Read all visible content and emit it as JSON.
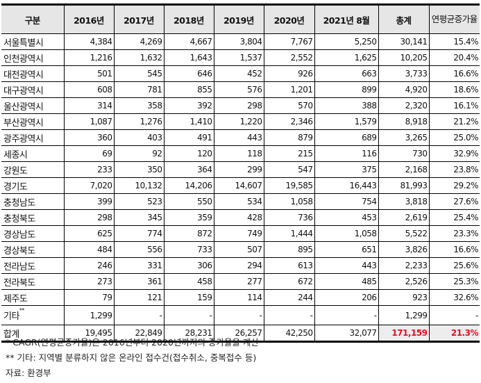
{
  "table": {
    "headers": [
      "구분",
      "2016년",
      "2017년",
      "2018년",
      "2019년",
      "2020년",
      "2021년 8월",
      "총계",
      "연평균증가율"
    ],
    "rows": [
      {
        "name": "서울특별시",
        "values": [
          "4,384",
          "4,269",
          "4,667",
          "3,804",
          "7,767",
          "5,250",
          "30,141",
          "15.4%"
        ]
      },
      {
        "name": "인천광역시",
        "values": [
          "1,216",
          "1,632",
          "1,643",
          "1,537",
          "2,552",
          "1,625",
          "10,205",
          "20.4%"
        ]
      },
      {
        "name": "대전광역시",
        "values": [
          "501",
          "545",
          "646",
          "452",
          "926",
          "663",
          "3,733",
          "16.6%"
        ]
      },
      {
        "name": "대구광역시",
        "values": [
          "608",
          "781",
          "855",
          "576",
          "1,201",
          "899",
          "4,920",
          "18.6%"
        ]
      },
      {
        "name": "울산광역시",
        "values": [
          "314",
          "358",
          "392",
          "298",
          "570",
          "388",
          "2,320",
          "16.1%"
        ]
      },
      {
        "name": "부산광역시",
        "values": [
          "1,087",
          "1,276",
          "1,410",
          "1,220",
          "2,346",
          "1,579",
          "8,918",
          "21.2%"
        ]
      },
      {
        "name": "광주광역시",
        "values": [
          "360",
          "403",
          "491",
          "443",
          "879",
          "689",
          "3,265",
          "25.0%"
        ]
      },
      {
        "name": "세종시",
        "values": [
          "69",
          "92",
          "120",
          "118",
          "215",
          "116",
          "730",
          "32.9%"
        ]
      },
      {
        "name": "강원도",
        "values": [
          "233",
          "350",
          "364",
          "299",
          "547",
          "375",
          "2,168",
          "23.8%"
        ]
      },
      {
        "name": "경기도",
        "values": [
          "7,020",
          "10,132",
          "14,206",
          "14,607",
          "19,585",
          "16,443",
          "81,993",
          "29.2%"
        ]
      },
      {
        "name": "충청남도",
        "values": [
          "399",
          "523",
          "550",
          "534",
          "1,058",
          "754",
          "3,818",
          "27.6%"
        ]
      },
      {
        "name": "충청북도",
        "values": [
          "298",
          "345",
          "359",
          "428",
          "736",
          "453",
          "2,619",
          "25.4%"
        ]
      },
      {
        "name": "경상남도",
        "values": [
          "625",
          "774",
          "872",
          "749",
          "1,444",
          "1,058",
          "5,522",
          "23.3%"
        ]
      },
      {
        "name": "경상북도",
        "values": [
          "484",
          "556",
          "733",
          "507",
          "895",
          "651",
          "3,826",
          "16.6%"
        ]
      },
      {
        "name": "전라남도",
        "values": [
          "246",
          "331",
          "306",
          "294",
          "613",
          "443",
          "2,233",
          "25.6%"
        ]
      },
      {
        "name": "전라북도",
        "values": [
          "273",
          "361",
          "458",
          "277",
          "672",
          "485",
          "2,526",
          "25.3%"
        ]
      },
      {
        "name": "제주도",
        "values": [
          "79",
          "121",
          "159",
          "114",
          "244",
          "206",
          "923",
          "32.6%"
        ]
      }
    ],
    "etc_row": {
      "name": "기타",
      "marker": "**",
      "values": [
        "1,299",
        "-",
        "-",
        "-",
        "-",
        "-",
        "1,299",
        "-"
      ]
    },
    "total_row": {
      "name": "합계",
      "values": [
        "19,495",
        "22,849",
        "28,231",
        "26,257",
        "42,250",
        "32,077",
        "171,159",
        "21.3%"
      ]
    },
    "highlight_color": "#e0101f"
  },
  "notes": [
    "* CAGR(연평균증가율)은 2016년부터 2020년까지의 증가율을 계산",
    "** 기타: 지역별 분류하지 않은 온라인 접수건(접수취소, 중복접수 등)",
    "자료: 환경부"
  ]
}
